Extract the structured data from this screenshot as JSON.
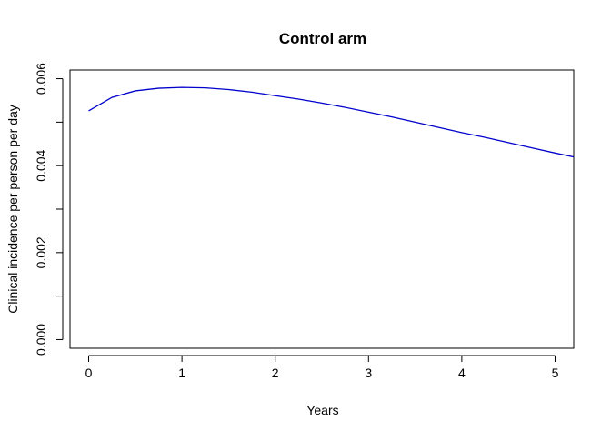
{
  "chart_data": {
    "type": "line",
    "title": "Control arm",
    "xlabel": "Years",
    "ylabel": "Clinical incidence per person per day",
    "xlim": [
      -0.2,
      5.2
    ],
    "ylim": [
      -0.0002,
      0.0062
    ],
    "x_ticks": [
      0,
      1,
      2,
      3,
      4,
      5
    ],
    "x_tick_labels": [
      "0",
      "1",
      "2",
      "3",
      "4",
      "5"
    ],
    "y_ticks": [
      0,
      0.002,
      0.004,
      0.006
    ],
    "y_tick_labels": [
      "0.000",
      "0.002",
      "0.004",
      "0.006"
    ],
    "grid": false,
    "colors": {
      "series": "#0000cd",
      "axis": "#000000"
    },
    "series": [
      {
        "x": [
          0,
          0.25,
          0.5,
          0.75,
          1.0,
          1.25,
          1.5,
          1.75,
          2.0,
          2.25,
          2.5,
          2.75,
          3.0,
          3.25,
          3.5,
          3.75,
          4.0,
          4.25,
          4.5,
          4.75,
          5.0,
          5.2
        ],
        "y": [
          0.00526,
          0.00557,
          0.00572,
          0.00578,
          0.0058,
          0.00579,
          0.00575,
          0.00569,
          0.00561,
          0.00553,
          0.00544,
          0.00534,
          0.00523,
          0.00512,
          0.005,
          0.00488,
          0.00476,
          0.00465,
          0.00453,
          0.00441,
          0.00429,
          0.0042
        ]
      }
    ]
  }
}
